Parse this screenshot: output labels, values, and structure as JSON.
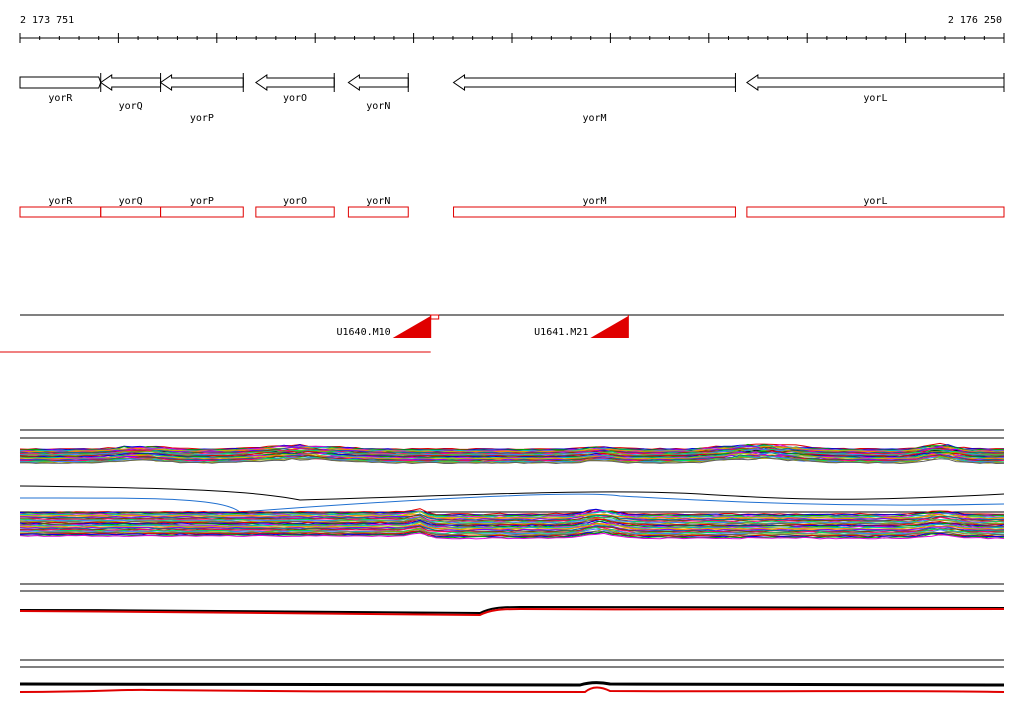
{
  "ruler": {
    "start_label": "2 173 751",
    "end_label": "2 176 250",
    "start_coord": 2173751,
    "end_coord": 2176250
  },
  "genes": [
    {
      "name": "yorR",
      "start": 2173751,
      "end": 2173956,
      "strand": "+",
      "label_row": 0
    },
    {
      "name": "yorQ",
      "start": 2173956,
      "end": 2174108,
      "strand": "-",
      "label_row": 1
    },
    {
      "name": "yorP",
      "start": 2174108,
      "end": 2174318,
      "strand": "-",
      "label_row": 2
    },
    {
      "name": "yorO",
      "start": 2174350,
      "end": 2174549,
      "strand": "-",
      "label_row": 0
    },
    {
      "name": "yorN",
      "start": 2174585,
      "end": 2174737,
      "strand": "-",
      "label_row": 1
    },
    {
      "name": "yorM",
      "start": 2174852,
      "end": 2175568,
      "strand": "-",
      "label_row": 2
    },
    {
      "name": "yorL",
      "start": 2175597,
      "end": 2176250,
      "strand": "-",
      "label_row": 0
    }
  ],
  "segments": [
    {
      "name": "U1640.M10",
      "start": 2173751,
      "end": 2174794
    },
    {
      "name": "U1641.M21",
      "start": 2174794,
      "end": 2175296
    }
  ],
  "colors": {
    "gene_outline": "#000000",
    "annotation": "#e00000",
    "segment_marker": "#e00000"
  }
}
